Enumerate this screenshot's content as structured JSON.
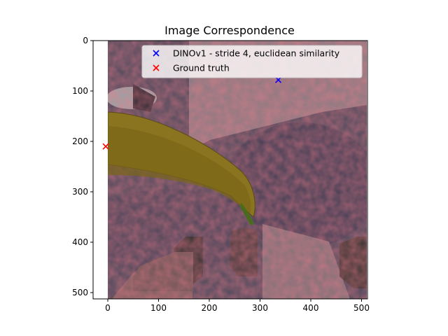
{
  "chart_data": {
    "type": "scatter",
    "title": "Image Correspondence",
    "xlabel": "",
    "ylabel": "",
    "xlim": [
      -30,
      512
    ],
    "ylim": [
      512,
      0
    ],
    "x_ticks": [
      0,
      100,
      200,
      300,
      400,
      500
    ],
    "y_ticks": [
      0,
      100,
      200,
      300,
      400,
      500
    ],
    "grid": false,
    "legend_position": "top-right",
    "background": "image overlay (banana on dark textured surface with red heatmap)",
    "series": [
      {
        "name": "DINOv1 - stride 4, euclidean similarity",
        "color": "#0000ff",
        "marker": "x",
        "x": [
          336
        ],
        "y": [
          78
        ]
      },
      {
        "name": "Ground truth",
        "color": "#ff0000",
        "marker": "x",
        "x": [
          -4
        ],
        "y": [
          210
        ]
      }
    ]
  }
}
